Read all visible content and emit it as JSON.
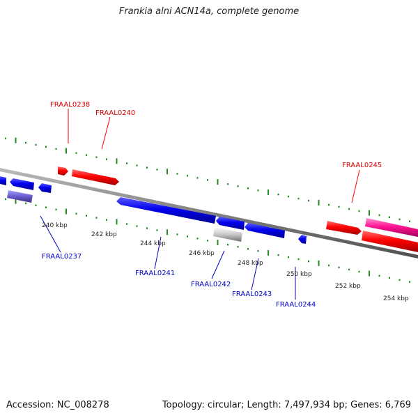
{
  "title": "Frankia alni ACN14a, complete genome",
  "footer": {
    "accession": "Accession: NC_008278",
    "topology": "Topology: circular; Length: 7,497,934 bp; Genes: 6,769"
  },
  "colors": {
    "forward": "#ff0000",
    "reverse": "#0000ee",
    "rna": "#ff1493",
    "pseudo": "#b0b0b0",
    "tick": "#228b22",
    "backbone": "#808080"
  },
  "tick_labels": [
    "240 kbp",
    "242 kbp",
    "244 kbp",
    "246 kbp",
    "248 kbp",
    "250 kbp",
    "252 kbp",
    "254 kbp"
  ],
  "gene_labels": {
    "FRAAL0238": "FRAAL0238",
    "FRAAL0240": "FRAAL0240",
    "FRAAL0245": "FRAAL0245",
    "FRAAL0237": "FRAAL0237",
    "FRAAL0241": "FRAAL0241",
    "FRAAL0242": "FRAAL0242",
    "FRAAL0243": "FRAAL0243",
    "FRAAL0244": "FRAAL0244"
  }
}
